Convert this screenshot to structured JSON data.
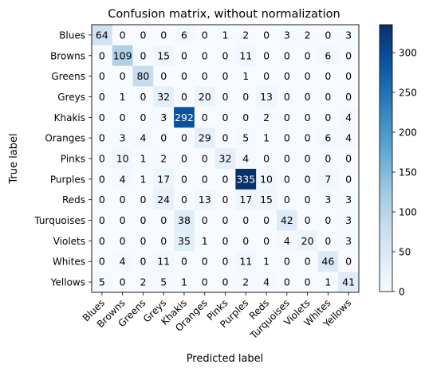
{
  "chart_data": {
    "type": "heatmap",
    "title": "Confusion matrix, without normalization",
    "xlabel": "Predicted label",
    "ylabel": "True label",
    "labels": [
      "Blues",
      "Browns",
      "Greens",
      "Greys",
      "Khakis",
      "Oranges",
      "Pinks",
      "Purples",
      "Reds",
      "Turquoises",
      "Violets",
      "Whites",
      "Yellows"
    ],
    "matrix": [
      [
        64,
        0,
        0,
        0,
        6,
        0,
        1,
        2,
        0,
        3,
        2,
        0,
        3
      ],
      [
        0,
        109,
        0,
        15,
        0,
        0,
        0,
        11,
        0,
        0,
        0,
        6,
        0
      ],
      [
        0,
        0,
        80,
        0,
        0,
        0,
        0,
        1,
        0,
        0,
        0,
        0,
        0
      ],
      [
        0,
        1,
        0,
        32,
        0,
        20,
        0,
        0,
        13,
        0,
        0,
        0,
        0
      ],
      [
        0,
        0,
        0,
        3,
        292,
        0,
        0,
        0,
        2,
        0,
        0,
        0,
        4
      ],
      [
        0,
        3,
        4,
        0,
        0,
        29,
        0,
        5,
        1,
        0,
        0,
        6,
        4
      ],
      [
        0,
        10,
        1,
        2,
        0,
        0,
        32,
        4,
        0,
        0,
        0,
        0,
        0
      ],
      [
        0,
        4,
        1,
        17,
        0,
        0,
        0,
        335,
        10,
        0,
        0,
        7,
        0
      ],
      [
        0,
        0,
        0,
        24,
        0,
        13,
        0,
        17,
        15,
        0,
        0,
        3,
        3
      ],
      [
        0,
        0,
        0,
        0,
        38,
        0,
        0,
        0,
        0,
        42,
        0,
        0,
        3
      ],
      [
        0,
        0,
        0,
        0,
        35,
        1,
        0,
        0,
        0,
        4,
        20,
        0,
        3
      ],
      [
        0,
        4,
        0,
        11,
        0,
        0,
        0,
        11,
        1,
        0,
        0,
        46,
        0
      ],
      [
        5,
        0,
        2,
        5,
        1,
        0,
        0,
        2,
        4,
        0,
        0,
        1,
        41
      ]
    ],
    "colormap": "Blues",
    "vmin": 0,
    "vmax": 335,
    "colorbar_ticks": [
      0,
      50,
      100,
      150,
      200,
      250,
      300
    ]
  }
}
